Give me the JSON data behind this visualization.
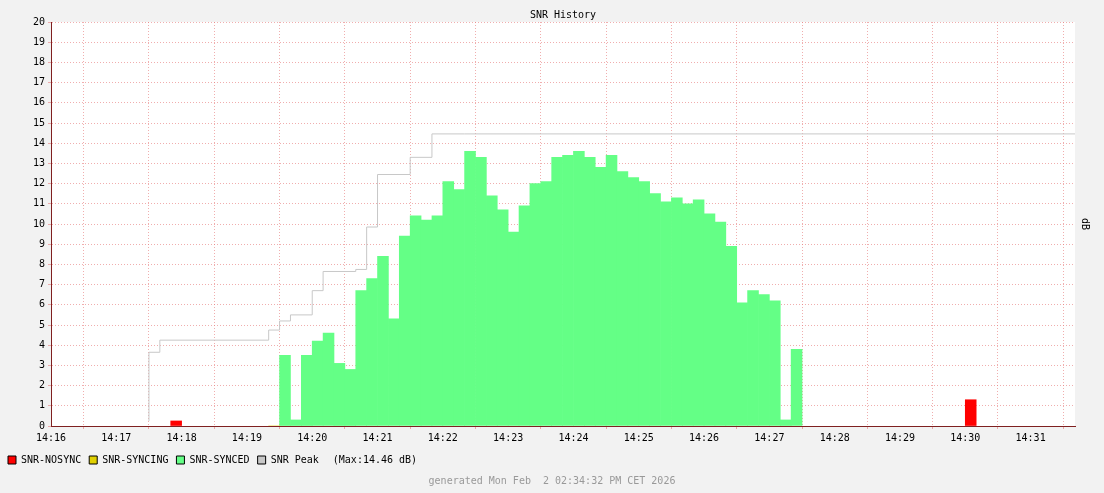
{
  "chart_data": {
    "type": "bar",
    "title": "SNR History",
    "ylabel": "dB",
    "xlim": [
      14.266667,
      14.528
    ],
    "xticks": [
      {
        "value": 14.266667,
        "label": "14:16"
      },
      {
        "value": 14.283333,
        "label": "14:17"
      },
      {
        "value": 14.3,
        "label": "14:18"
      },
      {
        "value": 14.316667,
        "label": "14:19"
      },
      {
        "value": 14.333333,
        "label": "14:20"
      },
      {
        "value": 14.35,
        "label": "14:21"
      },
      {
        "value": 14.366667,
        "label": "14:22"
      },
      {
        "value": 14.383333,
        "label": "14:23"
      },
      {
        "value": 14.4,
        "label": "14:24"
      },
      {
        "value": 14.416667,
        "label": "14:25"
      },
      {
        "value": 14.433333,
        "label": "14:26"
      },
      {
        "value": 14.45,
        "label": "14:27"
      },
      {
        "value": 14.466667,
        "label": "14:28"
      },
      {
        "value": 14.483333,
        "label": "14:29"
      },
      {
        "value": 14.5,
        "label": "14:30"
      },
      {
        "value": 14.516667,
        "label": "14:31"
      }
    ],
    "ylim": [
      0,
      20
    ],
    "yticks": [
      0,
      1,
      2,
      3,
      4,
      5,
      6,
      7,
      8,
      9,
      10,
      11,
      12,
      13,
      14,
      15,
      16,
      17,
      18,
      19,
      20
    ],
    "grid": true,
    "legend": "bottom left",
    "series": [
      {
        "name": "SNR-NOSYNC",
        "color": "#ff0000",
        "x": [
          14.298611,
          14.501389
        ],
        "values": [
          0.25,
          1.3
        ]
      },
      {
        "name": "SNR-SYNCING",
        "color": "#e0d000",
        "x": [
          14.323611
        ],
        "values": [
          0
        ]
      },
      {
        "name": "SNR-SYNCED",
        "color": "#64ff86",
        "x": [
          14.326389,
          14.329167,
          14.331944,
          14.334722,
          14.3375,
          14.340278,
          14.343056,
          14.345833,
          14.348611,
          14.351389,
          14.354167,
          14.356944,
          14.359722,
          14.3625,
          14.365278,
          14.368056,
          14.370833,
          14.373611,
          14.376389,
          14.379167,
          14.381944,
          14.384722,
          14.3875,
          14.390278,
          14.393056,
          14.395833,
          14.398611,
          14.401389,
          14.404167,
          14.406944,
          14.409722,
          14.4125,
          14.415278,
          14.418056,
          14.420833,
          14.423611,
          14.426389,
          14.429167,
          14.431944,
          14.434722,
          14.4375,
          14.440278,
          14.443056,
          14.445833,
          14.448611,
          14.451389,
          14.454167,
          14.456944
        ],
        "values": [
          3.5,
          0.3,
          3.5,
          4.2,
          4.6,
          3.1,
          2.8,
          6.7,
          7.3,
          8.4,
          5.3,
          9.4,
          10.4,
          10.2,
          10.4,
          12.1,
          11.7,
          13.6,
          13.3,
          11.4,
          10.7,
          9.6,
          10.9,
          12.0,
          12.1,
          13.3,
          13.4,
          13.6,
          13.3,
          12.8,
          13.4,
          12.6,
          12.3,
          12.1,
          11.5,
          11.1,
          11.3,
          11.0,
          11.2,
          10.5,
          10.1,
          8.9,
          6.1,
          6.7,
          6.5,
          6.2,
          0.3,
          3.8
        ]
      },
      {
        "name": "SNR Peak",
        "type": "step",
        "color": "#c8c8c8",
        "x": [
          14.291667,
          14.294444,
          14.322222,
          14.325,
          14.327778,
          14.333333,
          14.336111,
          14.344444,
          14.347222,
          14.35,
          14.358333,
          14.363889,
          14.372222,
          14.528
        ],
        "values": [
          0.25,
          3.65,
          4.25,
          4.75,
          5.2,
          5.5,
          6.7,
          7.65,
          7.75,
          9.85,
          12.45,
          13.3,
          14.46,
          14.46
        ]
      }
    ],
    "annotations": [
      "(Max:14.46 dB)",
      "generated Mon Feb  2 02:34:32 PM CET 2026"
    ]
  }
}
